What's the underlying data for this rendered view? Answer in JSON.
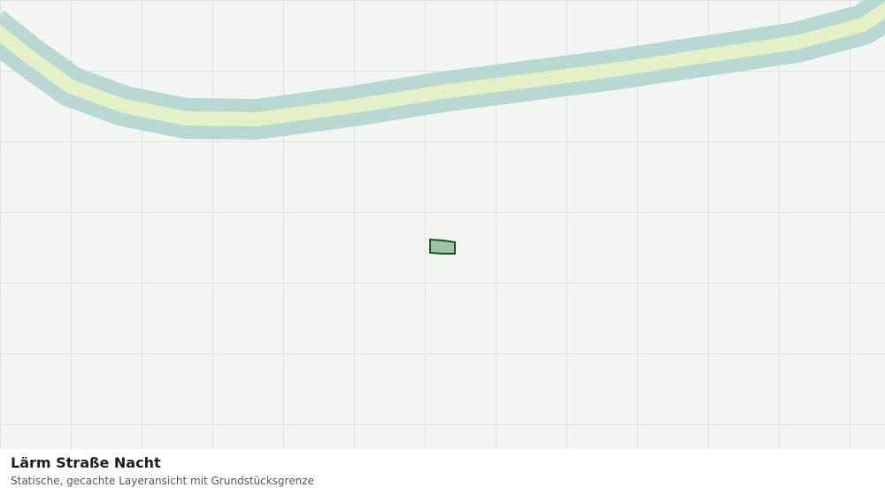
{
  "legend": {
    "title": "Lärm Straße Nacht",
    "subtitle": "Statische, gecachte Layeransicht mit Grundstücksgrenze"
  }
}
